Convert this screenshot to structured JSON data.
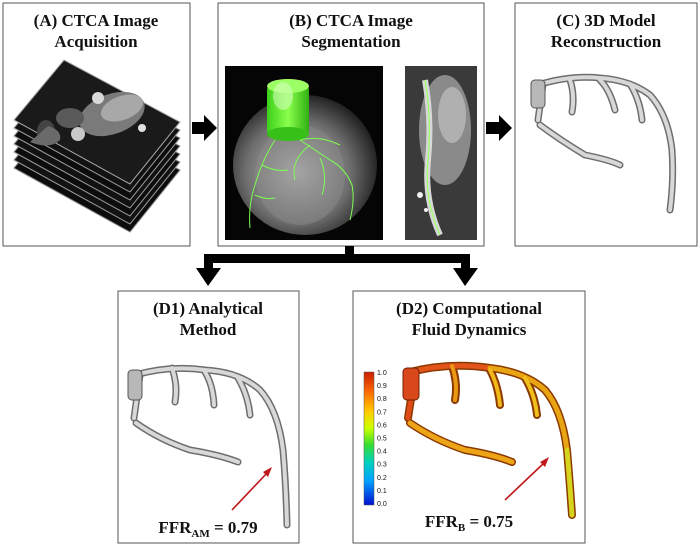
{
  "panels": {
    "A": {
      "title_line1": "(A) CTCA Image",
      "title_line2": "Acquisition"
    },
    "B": {
      "title_line1": "(B) CTCA Image",
      "title_line2": "Segmentation"
    },
    "C": {
      "title_line1": "(C) 3D Model",
      "title_line2": "Reconstruction"
    },
    "D1": {
      "title_line1": "(D1) Analytical",
      "title_line2": "Method",
      "ffr_main": "FFR",
      "ffr_sub": "AM",
      "ffr_value": " = 0.79"
    },
    "D2": {
      "title_line1": "(D2) Computational",
      "title_line2": "Fluid Dynamics",
      "ffr_main": "FFR",
      "ffr_sub": "B",
      "ffr_value": " = 0.75"
    }
  },
  "colorbar": {
    "ticks": [
      "1.0",
      "0.9",
      "0.8",
      "0.7",
      "0.6",
      "0.5",
      "0.4",
      "0.3",
      "0.2",
      "0.1",
      "0.0"
    ]
  },
  "colors": {
    "panel_border": "#555555",
    "arrow": "#000000",
    "annotation_arrow": "#c0181c",
    "segmentation_highlight": "#66ff33"
  }
}
